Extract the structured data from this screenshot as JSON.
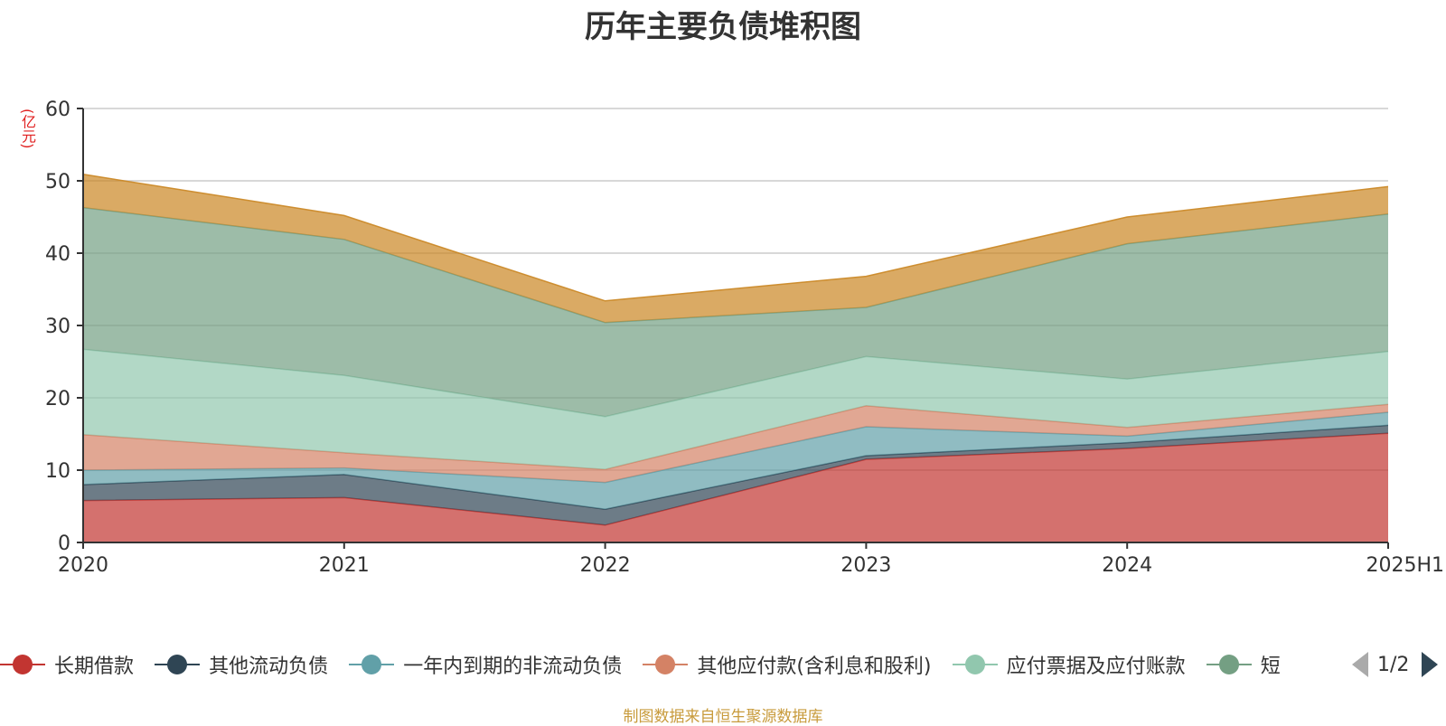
{
  "chart_data": {
    "type": "area",
    "stacked": true,
    "title": "历年主要负债堆积图",
    "unit_label": "(亿元)",
    "categories": [
      "2020",
      "2021",
      "2022",
      "2023",
      "2024",
      "2025H1"
    ],
    "ylim": [
      0,
      60
    ],
    "yticks": [
      0,
      10,
      20,
      30,
      40,
      50,
      60
    ],
    "grid": true,
    "legend_position": "bottom",
    "series": [
      {
        "name": "长期借款",
        "color": "#c23531",
        "values": [
          5.8,
          6.2,
          2.4,
          11.5,
          13.0,
          15.1
        ]
      },
      {
        "name": "其他流动负债",
        "color": "#2f4554",
        "values": [
          2.2,
          3.2,
          2.2,
          0.5,
          0.8,
          1.1
        ]
      },
      {
        "name": "一年内到期的非流动负债",
        "color": "#61a0a8",
        "values": [
          2.0,
          0.9,
          3.7,
          4.0,
          0.9,
          1.8
        ]
      },
      {
        "name": "其他应付款(含利息和股利)",
        "color": "#d48265",
        "values": [
          4.9,
          2.1,
          1.8,
          2.9,
          1.2,
          1.1
        ]
      },
      {
        "name": "应付票据及应付账款",
        "color": "#91c7ae",
        "values": [
          11.8,
          10.7,
          7.3,
          6.8,
          6.7,
          7.3
        ]
      },
      {
        "name": "短期借款",
        "color": "#749f83",
        "values": [
          19.6,
          18.8,
          13.0,
          6.8,
          18.7,
          19.0
        ]
      },
      {
        "name": "",
        "color": "#ca8622",
        "values": [
          4.6,
          3.3,
          3.0,
          4.3,
          3.7,
          3.8
        ]
      }
    ]
  },
  "legend": {
    "items": [
      {
        "label": "长期借款",
        "color": "#c23531"
      },
      {
        "label": "其他流动负债",
        "color": "#2f4554"
      },
      {
        "label": "一年内到期的非流动负债",
        "color": "#61a0a8"
      },
      {
        "label": "其他应付款(含利息和股利)",
        "color": "#d48265"
      },
      {
        "label": "应付票据及应付账款",
        "color": "#91c7ae"
      },
      {
        "label": "短",
        "color": "#749f83"
      }
    ],
    "page_indicator": "1/2"
  },
  "source_note": "制图数据来自恒生聚源数据库"
}
